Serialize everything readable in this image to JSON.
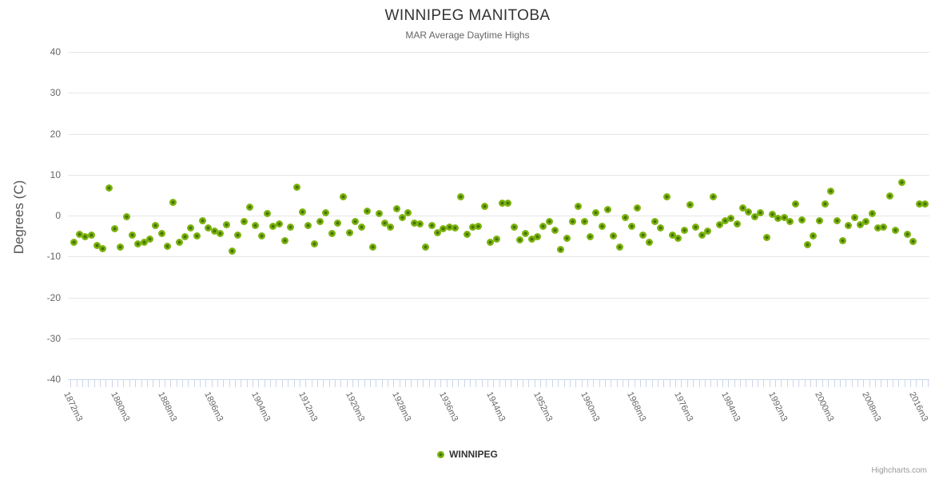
{
  "title": "WINNIPEG MANITOBA",
  "subtitle": "MAR Average Daytime Highs",
  "y_axis_title": "Degrees (C)",
  "legend": {
    "label": "WINNIPEG"
  },
  "credit": "Highcharts.com",
  "colors": {
    "point_outer": "#7db40e",
    "point_inner": "#44730a",
    "grid": "#e6e6e6",
    "axis_line": "#ccd6eb",
    "axis_label": "#666666",
    "title": "#333333",
    "subtitle": "#666666",
    "credit": "#999999"
  },
  "chart_data": {
    "type": "scatter",
    "title": "WINNIPEG MANITOBA",
    "subtitle": "MAR Average Daytime Highs",
    "ylabel": "Degrees (C)",
    "ylim": [
      -40,
      40
    ],
    "ytick_step": 10,
    "grid": "horizontal-only",
    "legend_position": "bottom-center",
    "x_suffix": "m3",
    "x_label_interval": 8,
    "x_tick_labels": [
      "1872m3",
      "1880m3",
      "1888m3",
      "1896m3",
      "1904m3",
      "1912m3",
      "1920m3",
      "1928m3",
      "1936m3",
      "1944m3",
      "1952m3",
      "1960m3",
      "1968m3",
      "1976m3",
      "1984m3",
      "1992m3",
      "2000m3",
      "2008m3",
      "2016m3"
    ],
    "series": [
      {
        "name": "WINNIPEG",
        "start_year": 1872,
        "end_year": 2017,
        "values": [
          -6.5,
          -4.5,
          -5.2,
          -4.8,
          -7.4,
          -8.0,
          6.7,
          -3.3,
          -7.7,
          -0.3,
          -4.7,
          -6.9,
          -6.5,
          -5.7,
          -2.5,
          -4.4,
          -7.6,
          3.3,
          -6.6,
          -5.2,
          -3.0,
          -4.9,
          -1.2,
          -3.0,
          -3.9,
          -4.4,
          -2.3,
          -8.7,
          -4.7,
          -1.5,
          2.1,
          -2.4,
          -4.9,
          0.5,
          -2.7,
          -2.1,
          -6.2,
          -2.9,
          7.0,
          0.8,
          -2.5,
          -7.0,
          -1.5,
          0.6,
          -4.4,
          -1.9,
          4.5,
          -4.1,
          -1.5,
          -2.9,
          1.0,
          -7.7,
          0.4,
          -1.8,
          -2.9,
          1.7,
          -0.5,
          0.6,
          -1.9,
          -2.1,
          -7.8,
          -2.5,
          -4.2,
          -3.3,
          -2.8,
          -3.0,
          4.6,
          -4.6,
          -2.8,
          -2.6,
          2.2,
          -6.6,
          -5.8,
          3.0,
          3.0,
          -2.9,
          -5.9,
          -4.4,
          -5.8,
          -5.2,
          -2.6,
          -1.4,
          -3.7,
          -8.3,
          -5.6,
          -1.5,
          2.2,
          -1.4,
          -5.2,
          0.6,
          -2.6,
          1.4,
          -5.0,
          -7.8,
          -0.5,
          -2.6,
          1.9,
          -4.7,
          -6.5,
          -1.4,
          -3.1,
          4.6,
          -4.7,
          -5.6,
          -3.7,
          2.7,
          -2.8,
          -4.7,
          -3.9,
          4.6,
          -2.3,
          -1.2,
          -0.7,
          -2.1,
          1.9,
          0.8,
          -0.3,
          0.6,
          -5.3,
          0.3,
          -0.6,
          -0.4,
          -1.5,
          2.9,
          -1.1,
          -7.2,
          -4.9,
          -1.3,
          2.8,
          5.9,
          -1.2,
          -6.1,
          -2.4,
          -0.4,
          -2.2,
          -1.5,
          0.5,
          -3.0,
          -2.9,
          4.7,
          -3.6,
          8.1,
          -4.6,
          -6.4,
          2.9,
          2.9
        ]
      }
    ]
  }
}
